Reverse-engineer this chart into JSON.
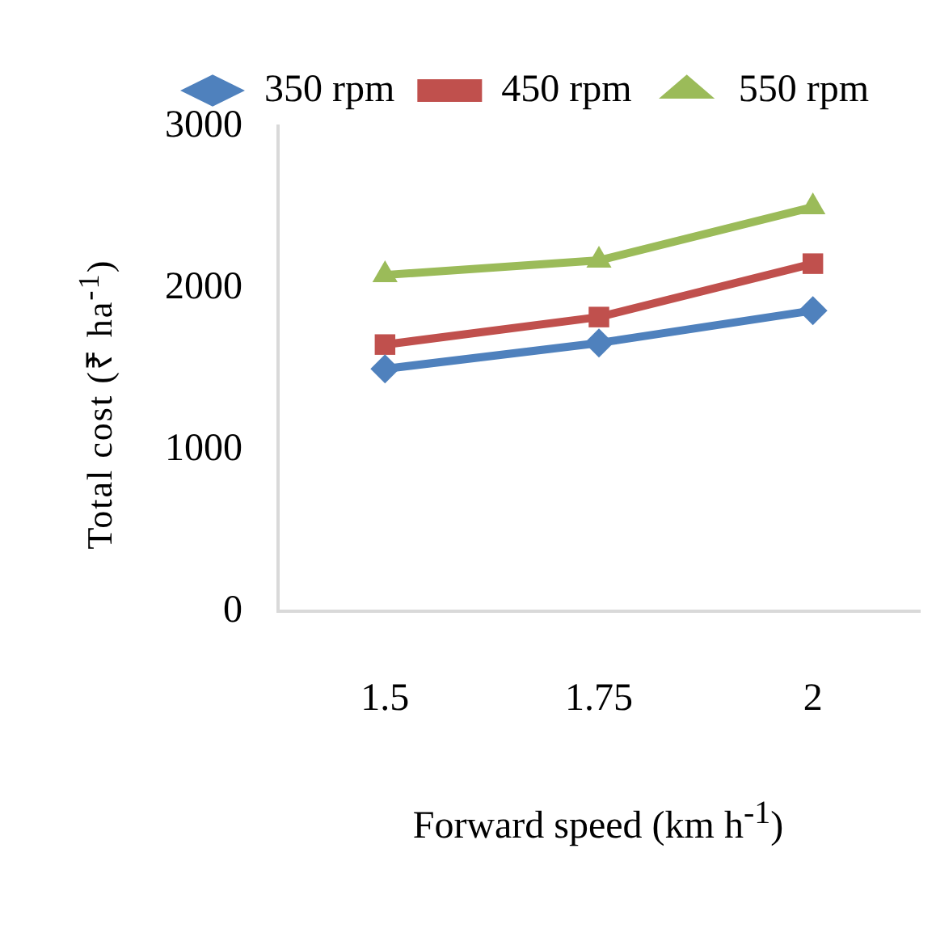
{
  "chart_data": {
    "type": "line",
    "xlabel": "Forward speed (km h$^{-1}$)",
    "ylabel": "Total cost (₹ ha$^{-1}$)",
    "categories": [
      "1.5",
      "1.75",
      "2"
    ],
    "series": [
      {
        "name": "350 rpm",
        "color": "#4f81bd",
        "marker": "diamond",
        "values": [
          1500,
          1660,
          1860
        ]
      },
      {
        "name": "450 rpm",
        "color": "#c0504d",
        "marker": "square",
        "values": [
          1650,
          1820,
          2150
        ]
      },
      {
        "name": "550 rpm",
        "color": "#9bbb59",
        "marker": "triangle",
        "values": [
          2080,
          2170,
          2500
        ]
      }
    ],
    "ylim": [
      0,
      3000
    ],
    "yticks": [
      0,
      1000,
      2000,
      3000
    ],
    "grid": false,
    "legend": "top",
    "line_style": "solid"
  }
}
